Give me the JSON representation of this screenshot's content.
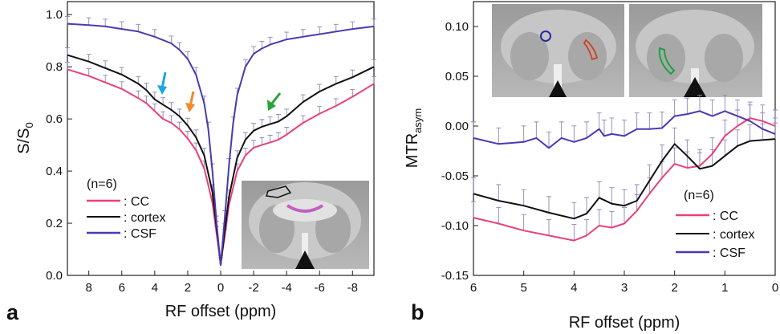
{
  "colors": {
    "CC": "#e8417a",
    "cortex": "#111111",
    "CSF": "#4a3ab0",
    "error": "#8a86b8",
    "arrow_blue": "#1aa6e0",
    "arrow_orange": "#f08a2a",
    "arrow_green": "#2aa33a"
  },
  "chart_data": [
    {
      "panel": "a",
      "type": "line",
      "xlabel": "RF offset (ppm)",
      "ylabel": "S/S",
      "ylabel_sub": "0",
      "xlim": [
        9.3,
        -9.3
      ],
      "ylim": [
        0.0,
        1.05
      ],
      "xticks": [
        8,
        6,
        4,
        2,
        0,
        -2,
        -4,
        -6,
        -8
      ],
      "xtick_labels": [
        "8",
        "6",
        "4",
        "2",
        "0",
        "-2",
        "-4",
        "-6",
        "-8"
      ],
      "yticks": [
        0.0,
        0.2,
        0.4,
        0.6,
        0.8,
        1.0
      ],
      "ytick_labels": [
        "0.0",
        "0.2",
        "0.4",
        "0.6",
        "0.8",
        "1.0"
      ],
      "legend_title": "(n=6)",
      "series": [
        {
          "name": ": CC",
          "key": "CC",
          "x": [
            9.3,
            8,
            7,
            6,
            5,
            4.5,
            4,
            3.5,
            3,
            2.5,
            2,
            1.5,
            1,
            0.5,
            0.25,
            0,
            -0.25,
            -0.5,
            -1,
            -1.5,
            -2,
            -2.5,
            -3,
            -3.5,
            -4,
            -5,
            -6,
            -7,
            -8,
            -9.3
          ],
          "y": [
            0.79,
            0.765,
            0.74,
            0.715,
            0.68,
            0.66,
            0.63,
            0.6,
            0.585,
            0.56,
            0.525,
            0.48,
            0.41,
            0.28,
            0.16,
            0.05,
            0.15,
            0.27,
            0.4,
            0.46,
            0.49,
            0.5,
            0.51,
            0.52,
            0.54,
            0.585,
            0.62,
            0.65,
            0.685,
            0.735
          ]
        },
        {
          "name": ": cortex",
          "key": "cortex",
          "x": [
            9.3,
            8,
            7,
            6,
            5,
            4.5,
            4,
            3.5,
            3,
            2.5,
            2,
            1.5,
            1,
            0.5,
            0.25,
            0,
            -0.25,
            -0.5,
            -1,
            -1.5,
            -2,
            -2.5,
            -3,
            -3.5,
            -4,
            -5,
            -6,
            -7,
            -8,
            -9.3
          ],
          "y": [
            0.845,
            0.82,
            0.795,
            0.77,
            0.735,
            0.71,
            0.675,
            0.655,
            0.635,
            0.61,
            0.575,
            0.53,
            0.46,
            0.32,
            0.18,
            0.04,
            0.17,
            0.3,
            0.45,
            0.52,
            0.555,
            0.57,
            0.58,
            0.59,
            0.61,
            0.665,
            0.705,
            0.735,
            0.76,
            0.8
          ]
        },
        {
          "name": ": CSF",
          "key": "CSF",
          "x": [
            9.3,
            8,
            7,
            6,
            5,
            4,
            3,
            2.5,
            2,
            1.5,
            1,
            0.75,
            0.5,
            0.25,
            0,
            -0.25,
            -0.5,
            -0.75,
            -1,
            -1.5,
            -2,
            -2.5,
            -3,
            -4,
            -5,
            -6,
            -7,
            -8,
            -9.3
          ],
          "y": [
            0.965,
            0.96,
            0.955,
            0.945,
            0.935,
            0.915,
            0.89,
            0.865,
            0.83,
            0.77,
            0.66,
            0.56,
            0.4,
            0.2,
            0.04,
            0.22,
            0.42,
            0.58,
            0.69,
            0.8,
            0.85,
            0.87,
            0.885,
            0.905,
            0.915,
            0.925,
            0.935,
            0.945,
            0.955
          ]
        }
      ]
    },
    {
      "panel": "b",
      "type": "line",
      "xlabel": "RF offset (ppm)",
      "ylabel": "MTR",
      "ylabel_sub": "asym",
      "xlim": [
        6,
        0
      ],
      "ylim": [
        -0.15,
        0.125
      ],
      "xticks": [
        6,
        5,
        4,
        3,
        2,
        1,
        0
      ],
      "xtick_labels": [
        "6",
        "5",
        "4",
        "3",
        "2",
        "1",
        "0"
      ],
      "yticks": [
        -0.15,
        -0.1,
        -0.05,
        0.0,
        0.05,
        0.1
      ],
      "ytick_labels": [
        "-0.15",
        "-0.10",
        "-0.05",
        "0.00",
        "0.05",
        "0.10"
      ],
      "legend_title": "(n=6)",
      "series": [
        {
          "name": ": CC",
          "key": "CC",
          "x": [
            6,
            5.5,
            5,
            4.5,
            4,
            3.75,
            3.5,
            3.25,
            3,
            2.75,
            2.5,
            2.25,
            2,
            1.75,
            1.5,
            1.25,
            1,
            0.75,
            0.5,
            0.25,
            0
          ],
          "y": [
            -0.092,
            -0.098,
            -0.105,
            -0.11,
            -0.115,
            -0.11,
            -0.1,
            -0.102,
            -0.098,
            -0.085,
            -0.068,
            -0.052,
            -0.038,
            -0.042,
            -0.04,
            -0.028,
            -0.01,
            0.0,
            0.008,
            0.005,
            0.0
          ]
        },
        {
          "name": ": cortex",
          "key": "cortex",
          "x": [
            6,
            5.5,
            5,
            4.5,
            4,
            3.75,
            3.5,
            3.25,
            3,
            2.75,
            2.5,
            2.25,
            2,
            1.75,
            1.5,
            1.25,
            1,
            0.75,
            0.5,
            0.25,
            0
          ],
          "y": [
            -0.068,
            -0.075,
            -0.08,
            -0.087,
            -0.093,
            -0.088,
            -0.072,
            -0.078,
            -0.08,
            -0.075,
            -0.055,
            -0.035,
            -0.018,
            -0.03,
            -0.043,
            -0.04,
            -0.03,
            -0.02,
            -0.015,
            -0.014,
            -0.013
          ]
        },
        {
          "name": ": CSF",
          "key": "CSF",
          "x": [
            6,
            5.5,
            5,
            4.75,
            4.5,
            4.25,
            4,
            3.75,
            3.5,
            3.4,
            3.25,
            3,
            2.75,
            2.5,
            2.25,
            2,
            1.75,
            1.5,
            1.25,
            1,
            0.75,
            0.5,
            0.25,
            0
          ],
          "y": [
            -0.012,
            -0.018,
            -0.016,
            -0.012,
            -0.022,
            -0.012,
            -0.016,
            -0.012,
            -0.003,
            -0.01,
            -0.008,
            -0.01,
            -0.003,
            -0.003,
            -0.002,
            0.01,
            0.012,
            0.015,
            0.01,
            0.015,
            0.01,
            0.005,
            -0.003,
            -0.008
          ]
        }
      ]
    }
  ],
  "panel_labels": {
    "a": "a",
    "b": "b"
  }
}
